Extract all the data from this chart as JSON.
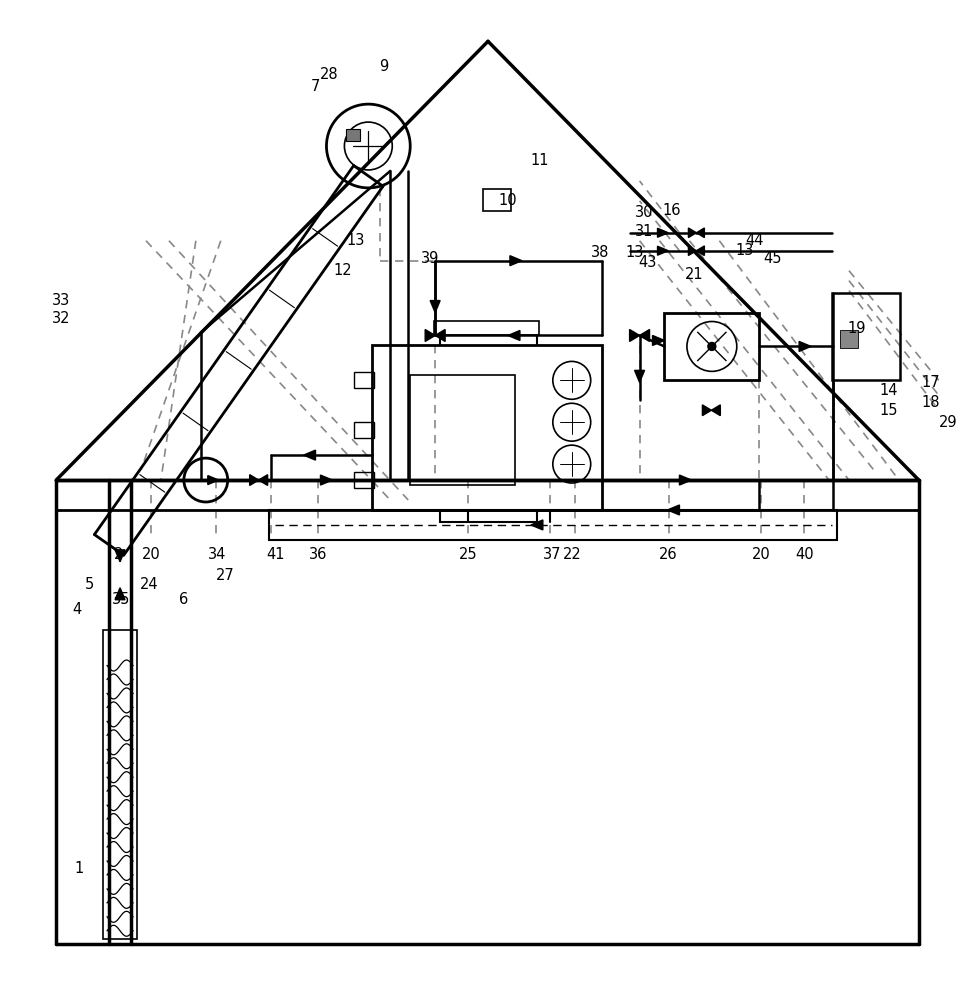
{
  "bg_color": "#ffffff",
  "line_color": "#000000",
  "dash_color": "#888888"
}
